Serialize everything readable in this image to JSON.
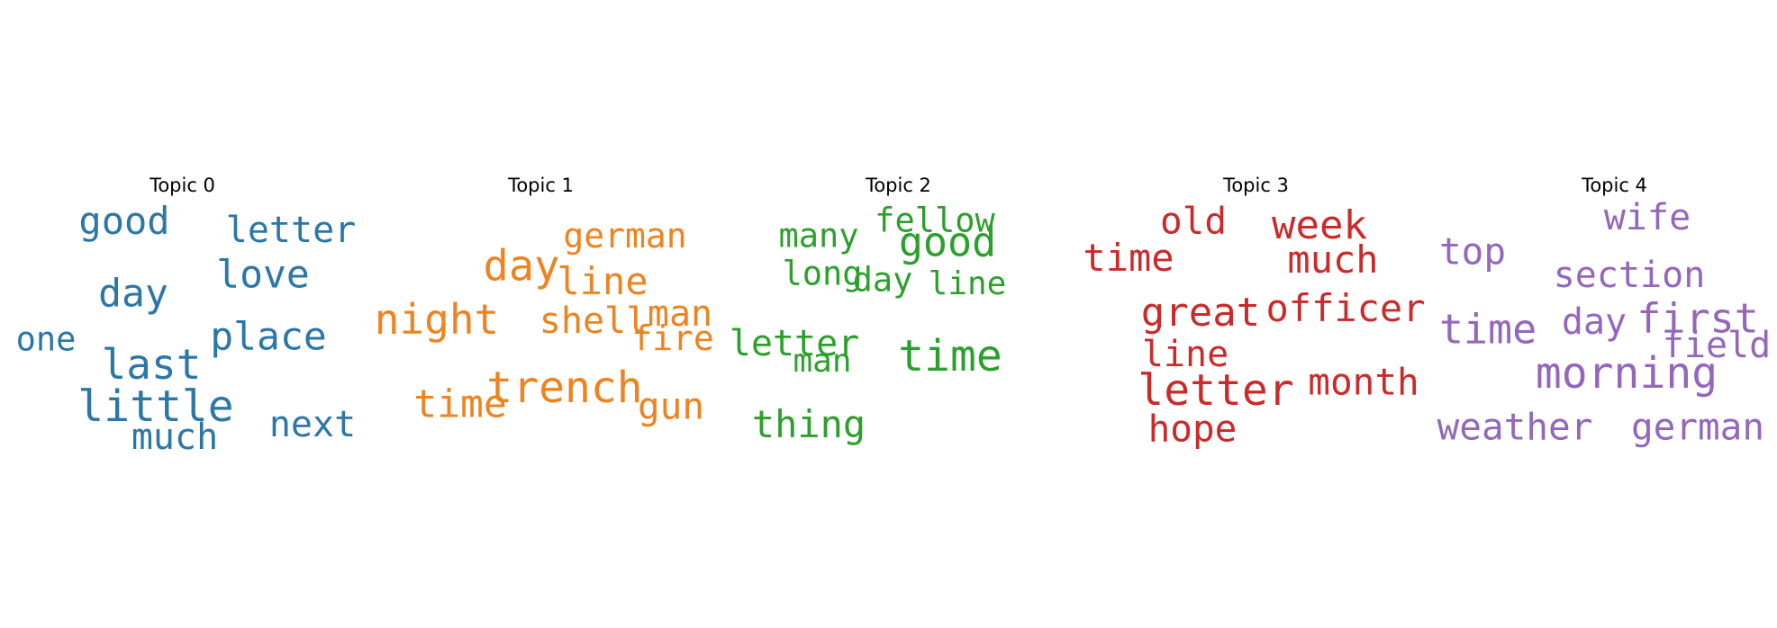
{
  "chart_data": [
    {
      "type": "wordcloud",
      "title": "Topic 0",
      "color": "#2b77a8",
      "words": [
        {
          "text": "good",
          "weight": 0.75
        },
        {
          "text": "letter",
          "weight": 0.68
        },
        {
          "text": "day",
          "weight": 0.8
        },
        {
          "text": "love",
          "weight": 0.78
        },
        {
          "text": "one",
          "weight": 0.55
        },
        {
          "text": "place",
          "weight": 0.8
        },
        {
          "text": "last",
          "weight": 0.9
        },
        {
          "text": "little",
          "weight": 1.0
        },
        {
          "text": "next",
          "weight": 0.68
        },
        {
          "text": "much",
          "weight": 0.66
        }
      ]
    },
    {
      "type": "wordcloud",
      "title": "Topic 1",
      "color": "#ee8320",
      "words": [
        {
          "text": "german",
          "weight": 0.6
        },
        {
          "text": "day",
          "weight": 0.95
        },
        {
          "text": "line",
          "weight": 0.75
        },
        {
          "text": "night",
          "weight": 0.9
        },
        {
          "text": "shell",
          "weight": 0.66
        },
        {
          "text": "man",
          "weight": 0.66
        },
        {
          "text": "fire",
          "weight": 0.6
        },
        {
          "text": "trench",
          "weight": 1.0
        },
        {
          "text": "time",
          "weight": 0.8
        },
        {
          "text": "gun",
          "weight": 0.7
        }
      ]
    },
    {
      "type": "wordcloud",
      "title": "Topic 2",
      "color": "#2ca02c",
      "words": [
        {
          "text": "many",
          "weight": 0.55
        },
        {
          "text": "fellow",
          "weight": 0.55
        },
        {
          "text": "good",
          "weight": 0.88
        },
        {
          "text": "long",
          "weight": 0.55
        },
        {
          "text": "day",
          "weight": 0.55
        },
        {
          "text": "line",
          "weight": 0.5
        },
        {
          "text": "letter",
          "weight": 0.66
        },
        {
          "text": "man",
          "weight": 0.52
        },
        {
          "text": "time",
          "weight": 1.0
        },
        {
          "text": "thing",
          "weight": 0.74
        }
      ]
    },
    {
      "type": "wordcloud",
      "title": "Topic 3",
      "color": "#cc2a2a",
      "words": [
        {
          "text": "old",
          "weight": 0.7
        },
        {
          "text": "week",
          "weight": 0.85
        },
        {
          "text": "time",
          "weight": 0.74
        },
        {
          "text": "much",
          "weight": 0.74
        },
        {
          "text": "great",
          "weight": 0.85
        },
        {
          "text": "officer",
          "weight": 0.74
        },
        {
          "text": "line",
          "weight": 0.66
        },
        {
          "text": "letter",
          "weight": 1.0
        },
        {
          "text": "month",
          "weight": 0.7
        },
        {
          "text": "hope",
          "weight": 0.7
        }
      ]
    },
    {
      "type": "wordcloud",
      "title": "Topic 4",
      "color": "#9467bd",
      "words": [
        {
          "text": "wife",
          "weight": 0.66
        },
        {
          "text": "top",
          "weight": 0.7
        },
        {
          "text": "section",
          "weight": 0.66
        },
        {
          "text": "time",
          "weight": 0.88
        },
        {
          "text": "day",
          "weight": 0.66
        },
        {
          "text": "first",
          "weight": 0.88
        },
        {
          "text": "field",
          "weight": 0.66
        },
        {
          "text": "morning",
          "weight": 1.0
        },
        {
          "text": "weather",
          "weight": 0.7
        },
        {
          "text": "german",
          "weight": 0.7
        }
      ]
    }
  ]
}
